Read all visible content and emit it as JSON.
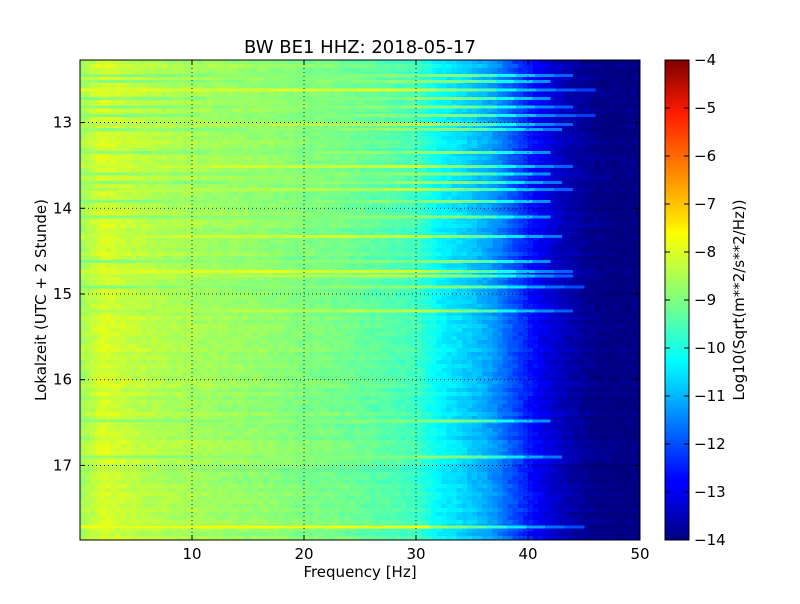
{
  "chart_data": {
    "type": "heatmap",
    "title": "BW BE1 HHZ: 2018-05-17",
    "xlabel": "Frequency [Hz]",
    "ylabel": "Lokalzeit (UTC + 2 Stunde)",
    "colorbar_label": "Log10(Sqrt(m**2/s**2/Hz))",
    "colormap": "jet",
    "xlim": [
      0,
      50
    ],
    "ylim": [
      12.27,
      17.87
    ],
    "y_axis": "inverted",
    "clim": [
      -14,
      -4
    ],
    "grid": true,
    "x_ticks": [
      10,
      20,
      30,
      40,
      50
    ],
    "y_ticks": [
      13,
      14,
      15,
      16,
      17
    ],
    "colorbar_ticks": [
      -4,
      -5,
      -6,
      -7,
      -8,
      -9,
      -10,
      -11,
      -12,
      -13,
      -14
    ],
    "x": [
      0,
      2,
      4,
      6,
      8,
      10,
      12,
      14,
      16,
      18,
      20,
      22,
      24,
      26,
      28,
      30,
      31,
      32,
      33,
      34,
      35,
      36,
      37,
      38,
      39,
      40,
      41,
      42,
      43,
      44,
      45,
      46,
      48,
      50
    ],
    "z_baseline": [
      -8.7,
      -8.1,
      -8.3,
      -8.45,
      -8.55,
      -8.6,
      -8.7,
      -8.75,
      -8.8,
      -8.9,
      -9.0,
      -9.05,
      -9.15,
      -9.3,
      -9.45,
      -9.6,
      -9.95,
      -10.3,
      -10.45,
      -10.6,
      -10.8,
      -11.0,
      -11.3,
      -11.7,
      -12.1,
      -12.5,
      -12.85,
      -13.15,
      -13.4,
      -13.6,
      -13.75,
      -13.9,
      -14.0,
      -14.0
    ],
    "bands": [
      {
        "time": 12.45,
        "level_db": -8.9,
        "fmax": 44
      },
      {
        "time": 12.52,
        "level_db": -8.9,
        "fmax": 42
      },
      {
        "time": 12.62,
        "level_db": -8.1,
        "fmax": 46
      },
      {
        "time": 12.72,
        "level_db": -8.9,
        "fmax": 42
      },
      {
        "time": 12.82,
        "level_db": -8.9,
        "fmax": 44
      },
      {
        "time": 12.92,
        "level_db": -8.9,
        "fmax": 46
      },
      {
        "time": 13.02,
        "level_db": -8.5,
        "fmax": 44
      },
      {
        "time": 13.08,
        "level_db": -8.9,
        "fmax": 43
      },
      {
        "time": 13.35,
        "level_db": -8.9,
        "fmax": 42
      },
      {
        "time": 13.51,
        "level_db": -8.3,
        "fmax": 44
      },
      {
        "time": 13.6,
        "level_db": -8.9,
        "fmax": 42
      },
      {
        "time": 13.7,
        "level_db": -8.9,
        "fmax": 43
      },
      {
        "time": 13.78,
        "level_db": -8.5,
        "fmax": 44
      },
      {
        "time": 13.92,
        "level_db": -8.9,
        "fmax": 42
      },
      {
        "time": 14.1,
        "level_db": -8.9,
        "fmax": 42
      },
      {
        "time": 14.33,
        "level_db": -8.3,
        "fmax": 43
      },
      {
        "time": 14.62,
        "level_db": -8.9,
        "fmax": 42
      },
      {
        "time": 14.74,
        "level_db": -8.1,
        "fmax": 44
      },
      {
        "time": 14.79,
        "level_db": -8.5,
        "fmax": 44
      },
      {
        "time": 14.92,
        "level_db": -8.9,
        "fmax": 45
      },
      {
        "time": 15.2,
        "level_db": -8.5,
        "fmax": 44
      },
      {
        "time": 16.48,
        "level_db": -8.9,
        "fmax": 42
      },
      {
        "time": 16.9,
        "level_db": -8.9,
        "fmax": 43
      },
      {
        "time": 17.72,
        "level_db": -7.9,
        "fmax": 45
      }
    ]
  }
}
